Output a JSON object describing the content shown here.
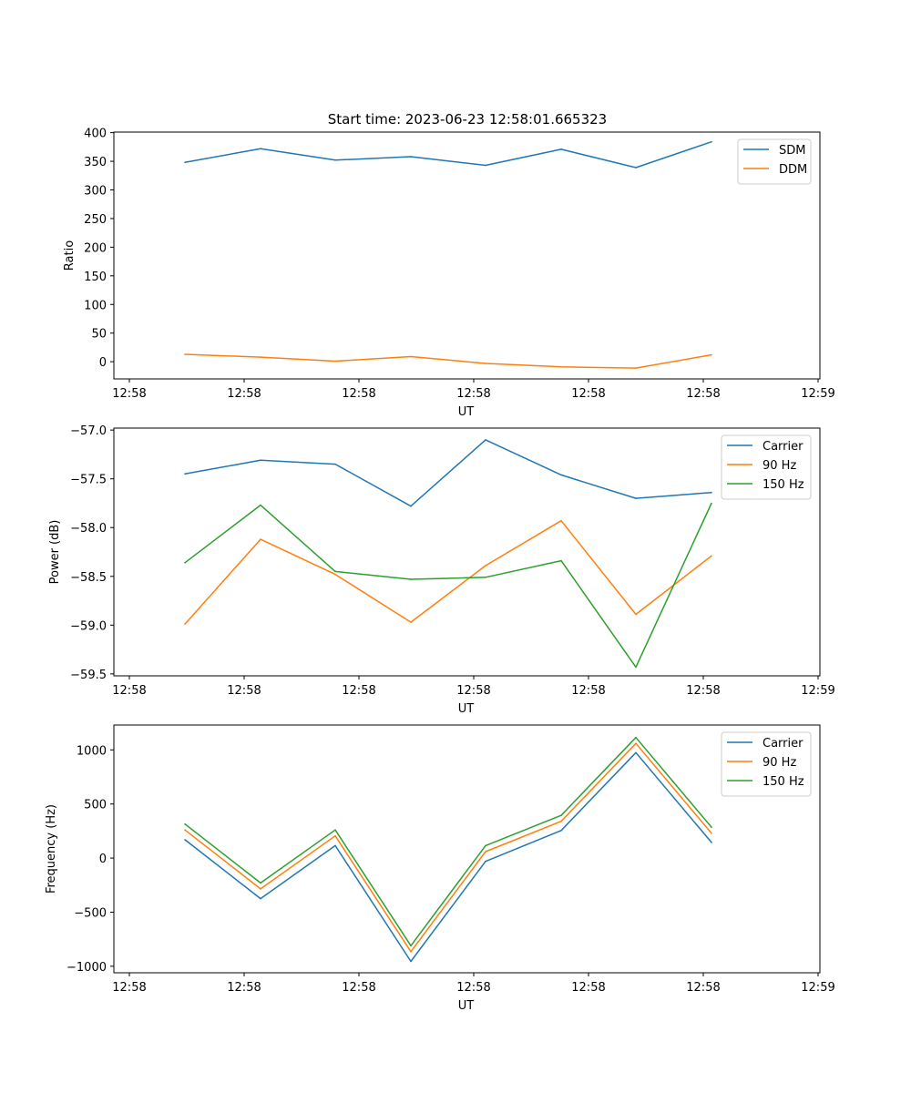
{
  "figure": {
    "title": "Start time: 2023-06-23 12:58:01.665323"
  },
  "chart_data": [
    {
      "type": "line",
      "xlabel": "UT",
      "ylabel": "Ratio",
      "x_tick_labels": [
        "12:58",
        "12:58",
        "12:58",
        "12:58",
        "12:58",
        "12:58",
        "12:59"
      ],
      "y_ticks": [
        0,
        50,
        100,
        150,
        200,
        250,
        300,
        350,
        400
      ],
      "ylim": [
        -30,
        401
      ],
      "grid": false,
      "legend": "upper right",
      "series": [
        {
          "name": "SDM",
          "color": "#1f77b4",
          "values": [
            348,
            372,
            352,
            358,
            343,
            371,
            339,
            384
          ]
        },
        {
          "name": "DDM",
          "color": "#ff7f0e",
          "values": [
            13,
            8,
            1,
            9,
            -3,
            -9,
            -11,
            12
          ]
        }
      ]
    },
    {
      "type": "line",
      "xlabel": "UT",
      "ylabel": "Power (dB)",
      "x_tick_labels": [
        "12:58",
        "12:58",
        "12:58",
        "12:58",
        "12:58",
        "12:58",
        "12:59"
      ],
      "y_ticks": [
        -59.5,
        -59.0,
        -58.5,
        -58.0,
        -57.5,
        -57.0
      ],
      "y_tick_labels": [
        "−59.5",
        "−59.0",
        "−58.5",
        "−58.0",
        "−57.5",
        "−57.0"
      ],
      "ylim": [
        -59.52,
        -56.98
      ],
      "grid": false,
      "legend": "upper right",
      "series": [
        {
          "name": "Carrier",
          "color": "#1f77b4",
          "values": [
            -57.45,
            -57.31,
            -57.35,
            -57.78,
            -57.1,
            -57.46,
            -57.7,
            -57.64
          ]
        },
        {
          "name": "90 Hz",
          "color": "#ff7f0e",
          "values": [
            -58.99,
            -58.12,
            -58.48,
            -58.97,
            -58.39,
            -57.93,
            -58.89,
            -58.29
          ]
        },
        {
          "name": "150 Hz",
          "color": "#2ca02c",
          "values": [
            -58.36,
            -57.77,
            -58.45,
            -58.53,
            -58.51,
            -58.34,
            -59.43,
            -57.75
          ]
        }
      ]
    },
    {
      "type": "line",
      "xlabel": "UT",
      "ylabel": "Frequency (Hz)",
      "x_tick_labels": [
        "12:58",
        "12:58",
        "12:58",
        "12:58",
        "12:58",
        "12:58",
        "12:59"
      ],
      "y_ticks": [
        -1000,
        -500,
        0,
        500,
        1000
      ],
      "y_tick_labels": [
        "−1000",
        "−500",
        "0",
        "500",
        "1000"
      ],
      "ylim": [
        -1060,
        1230
      ],
      "grid": false,
      "legend": "upper right",
      "series": [
        {
          "name": "Carrier",
          "color": "#1f77b4",
          "values": [
            170,
            -375,
            115,
            -955,
            -30,
            255,
            975,
            145
          ]
        },
        {
          "name": "90 Hz",
          "color": "#ff7f0e",
          "values": [
            260,
            -285,
            205,
            -865,
            60,
            340,
            1060,
            230
          ]
        },
        {
          "name": "150 Hz",
          "color": "#2ca02c",
          "values": [
            315,
            -230,
            260,
            -810,
            115,
            395,
            1115,
            285
          ]
        }
      ]
    }
  ]
}
